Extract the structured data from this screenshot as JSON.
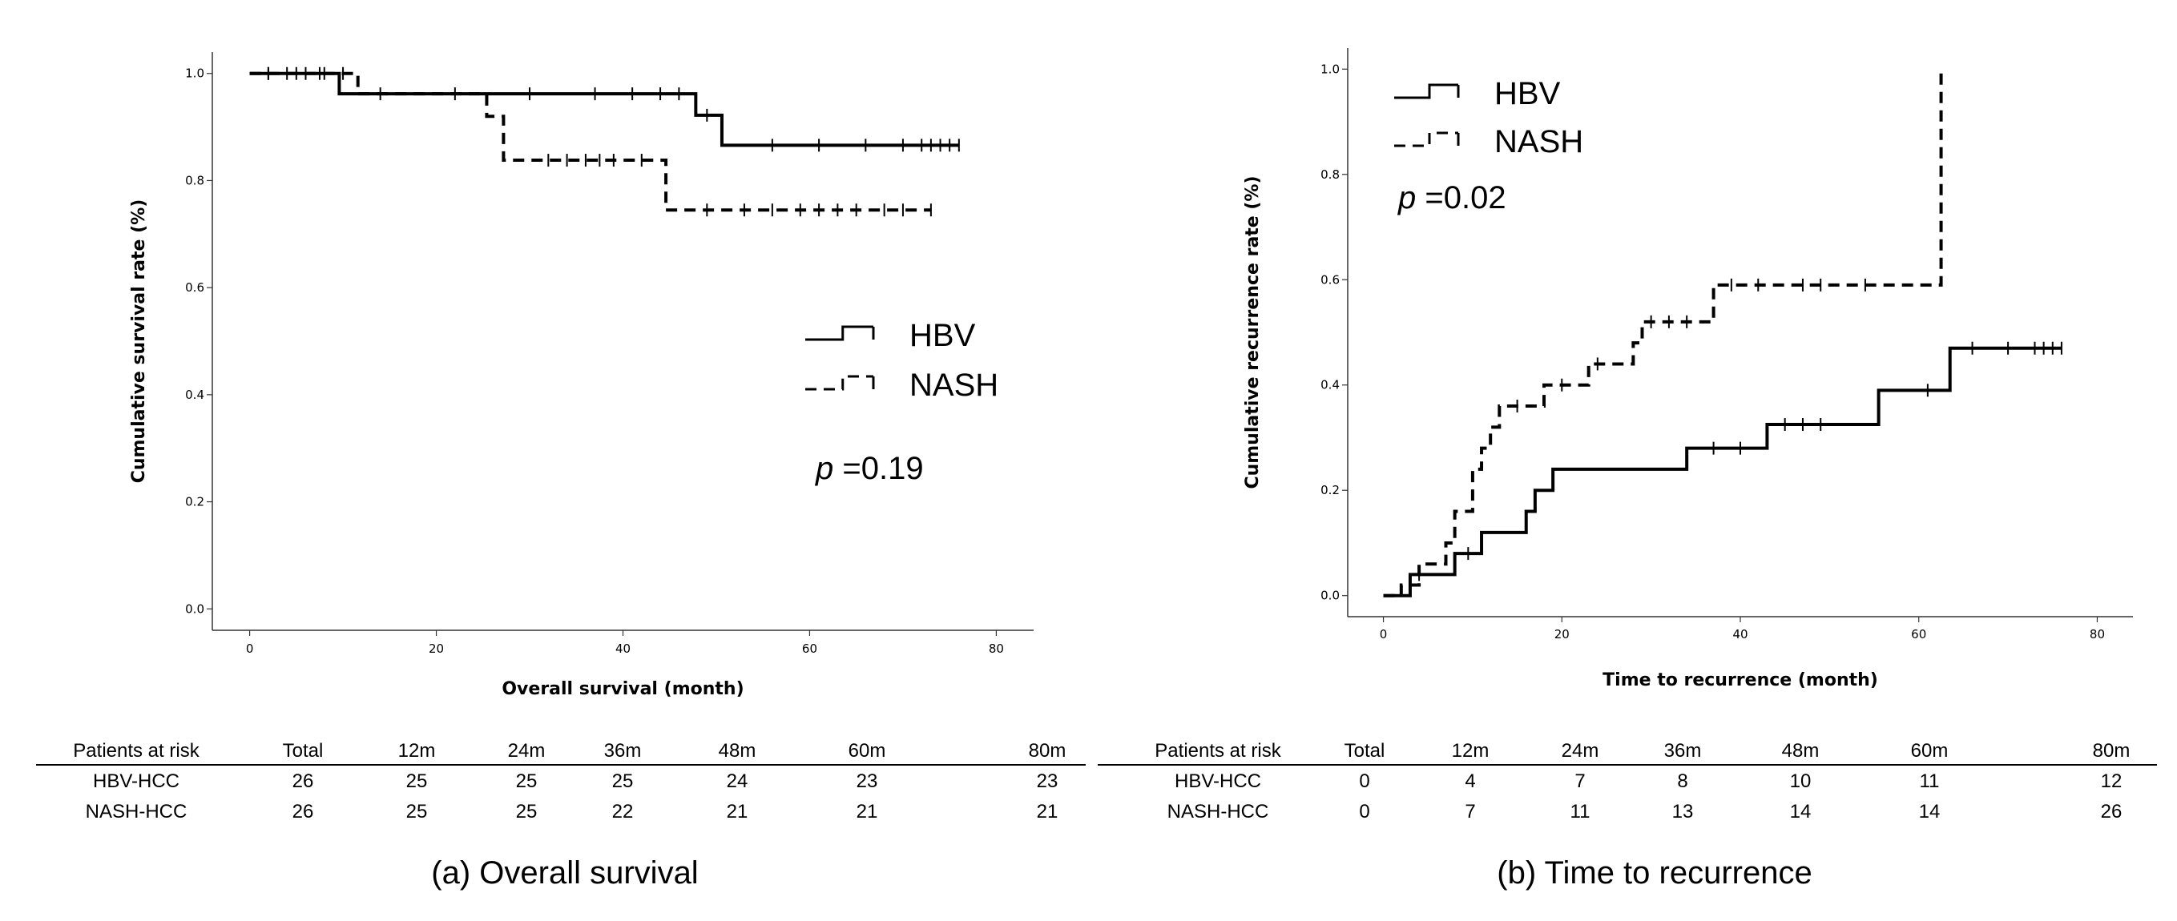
{
  "chart_data": [
    {
      "type": "line",
      "subtype": "kaplan-meier",
      "xlabel": "Overall survival (month)",
      "ylabel": "Cumulative survival rate (%)",
      "xlim": [
        -4,
        84
      ],
      "ylim": [
        -0.04,
        1.04
      ],
      "xticks": [
        0,
        20,
        40,
        60,
        80
      ],
      "yticks": [
        "0.0",
        "0.2",
        "0.4",
        "0.6",
        "0.8",
        "1.0"
      ],
      "legend_position": "center-right",
      "annotation": {
        "prefix": "p",
        "text": " =0.19"
      },
      "series": [
        {
          "name": "HBV",
          "style": "solid",
          "steps": [
            [
              0,
              1.0
            ],
            [
              9.6,
              0.962
            ],
            [
              47.8,
              0.922
            ],
            [
              50.6,
              0.866
            ],
            [
              76,
              0.866
            ]
          ],
          "censors": [
            [
              2,
              1.0
            ],
            [
              4,
              1.0
            ],
            [
              6,
              1.0
            ],
            [
              7.5,
              1.0
            ],
            [
              14,
              0.962
            ],
            [
              22,
              0.962
            ],
            [
              30,
              0.962
            ],
            [
              37,
              0.962
            ],
            [
              41,
              0.962
            ],
            [
              44,
              0.962
            ],
            [
              46,
              0.962
            ],
            [
              49,
              0.922
            ],
            [
              56,
              0.866
            ],
            [
              61,
              0.866
            ],
            [
              66,
              0.866
            ],
            [
              70,
              0.866
            ],
            [
              72,
              0.866
            ],
            [
              73,
              0.866
            ],
            [
              74,
              0.866
            ],
            [
              75,
              0.866
            ],
            [
              76,
              0.866
            ]
          ]
        },
        {
          "name": "NASH",
          "style": "dashed",
          "steps": [
            [
              0,
              1.0
            ],
            [
              11.6,
              0.962
            ],
            [
              25.4,
              0.92
            ],
            [
              27.2,
              0.838
            ],
            [
              44.6,
              0.745
            ],
            [
              73,
              0.745
            ]
          ],
          "censors": [
            [
              2,
              1.0
            ],
            [
              5,
              1.0
            ],
            [
              8,
              1.0
            ],
            [
              10,
              1.0
            ],
            [
              32,
              0.838
            ],
            [
              34,
              0.838
            ],
            [
              36,
              0.838
            ],
            [
              37.5,
              0.838
            ],
            [
              39,
              0.838
            ],
            [
              42,
              0.838
            ],
            [
              49,
              0.745
            ],
            [
              53,
              0.745
            ],
            [
              56,
              0.745
            ],
            [
              59,
              0.745
            ],
            [
              61,
              0.745
            ],
            [
              63,
              0.745
            ],
            [
              65,
              0.745
            ],
            [
              68,
              0.745
            ],
            [
              70,
              0.745
            ],
            [
              73,
              0.745
            ]
          ]
        }
      ]
    },
    {
      "type": "line",
      "subtype": "kaplan-meier",
      "xlabel": "Time to recurrence (month)",
      "ylabel": "Cumulative recurrence rate (%)",
      "xlim": [
        -4,
        84
      ],
      "ylim": [
        -0.04,
        1.04
      ],
      "xticks": [
        0,
        20,
        40,
        60,
        80
      ],
      "yticks": [
        "0.0",
        "0.2",
        "0.4",
        "0.6",
        "0.8",
        "1.0"
      ],
      "legend_position": "top-left",
      "annotation": {
        "prefix": "p",
        "text": " =0.02"
      },
      "series": [
        {
          "name": "HBV",
          "style": "solid",
          "steps": [
            [
              0,
              0.0
            ],
            [
              3,
              0.04
            ],
            [
              8,
              0.08
            ],
            [
              11,
              0.12
            ],
            [
              16,
              0.16
            ],
            [
              17,
              0.2
            ],
            [
              19,
              0.24
            ],
            [
              34,
              0.28
            ],
            [
              43,
              0.325
            ],
            [
              55.5,
              0.39
            ],
            [
              63.5,
              0.47
            ],
            [
              76,
              0.47
            ]
          ],
          "censors": [
            [
              4,
              0.04
            ],
            [
              9.5,
              0.08
            ],
            [
              37,
              0.28
            ],
            [
              40,
              0.28
            ],
            [
              45,
              0.325
            ],
            [
              47,
              0.325
            ],
            [
              49,
              0.325
            ],
            [
              61,
              0.39
            ],
            [
              66,
              0.47
            ],
            [
              70,
              0.47
            ],
            [
              73,
              0.47
            ],
            [
              74,
              0.47
            ],
            [
              75,
              0.47
            ],
            [
              76,
              0.47
            ]
          ]
        },
        {
          "name": "NASH",
          "style": "dashed",
          "steps": [
            [
              0,
              0.0
            ],
            [
              2,
              0.02
            ],
            [
              4,
              0.06
            ],
            [
              7,
              0.1
            ],
            [
              8,
              0.16
            ],
            [
              10,
              0.24
            ],
            [
              11,
              0.28
            ],
            [
              12,
              0.32
            ],
            [
              13,
              0.36
            ],
            [
              18,
              0.4
            ],
            [
              23,
              0.44
            ],
            [
              28,
              0.48
            ],
            [
              29,
              0.52
            ],
            [
              37,
              0.59
            ],
            [
              62.5,
              1.0
            ]
          ],
          "censors": [
            [
              15,
              0.36
            ],
            [
              20,
              0.4
            ],
            [
              24,
              0.44
            ],
            [
              30,
              0.52
            ],
            [
              32,
              0.52
            ],
            [
              34,
              0.52
            ],
            [
              39,
              0.59
            ],
            [
              42,
              0.59
            ],
            [
              47,
              0.59
            ],
            [
              49,
              0.59
            ],
            [
              54,
              0.59
            ]
          ]
        }
      ]
    }
  ],
  "risk_tables": [
    {
      "headers": [
        "Patients at risk",
        "Total",
        "12m",
        "24m",
        "36m",
        "48m",
        "60m",
        "80m"
      ],
      "rows": [
        [
          "HBV-HCC",
          "26",
          "25",
          "25",
          "25",
          "24",
          "23",
          "23"
        ],
        [
          "NASH-HCC",
          "26",
          "25",
          "25",
          "22",
          "21",
          "21",
          "21"
        ]
      ]
    },
    {
      "headers": [
        "Patients at risk",
        "Total",
        "12m",
        "24m",
        "36m",
        "48m",
        "60m",
        "80m"
      ],
      "rows": [
        [
          "HBV-HCC",
          "0",
          "4",
          "7",
          "8",
          "10",
          "11",
          "12"
        ],
        [
          "NASH-HCC",
          "0",
          "7",
          "11",
          "13",
          "14",
          "14",
          "26"
        ]
      ]
    }
  ],
  "captions": [
    "(a) Overall survival",
    "(b) Time to recurrence"
  ]
}
